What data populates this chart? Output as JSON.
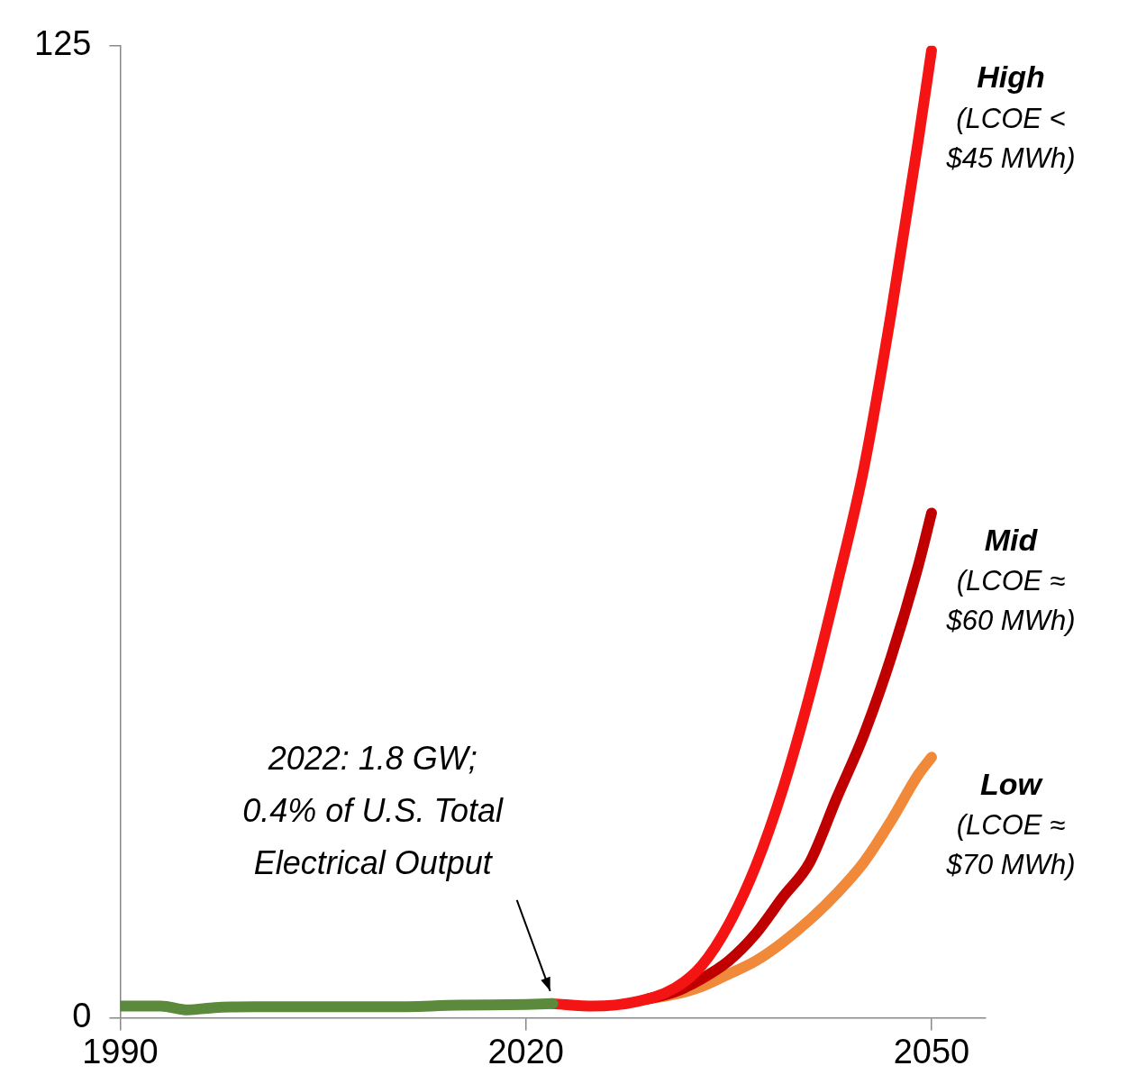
{
  "chart_data": {
    "type": "line",
    "xlim": [
      1990,
      2054
    ],
    "xticks": [
      1990,
      2020,
      2050
    ],
    "ylim": [
      0,
      125
    ],
    "yticks": [
      0,
      125
    ],
    "grid": false,
    "legend": false,
    "marker": "none",
    "line_style": "solid",
    "series": [
      {
        "color": "#5b8a3c",
        "x": [
          1990,
          1993,
          1995,
          1997,
          2000,
          2005,
          2010,
          2015,
          2020,
          2022
        ],
        "values": [
          1.5,
          1.5,
          1.0,
          1.3,
          1.4,
          1.4,
          1.4,
          1.6,
          1.7,
          1.8
        ]
      },
      {
        "name": "High",
        "color": "#f51414",
        "x": [
          2022,
          2025,
          2028,
          2031,
          2033,
          2035,
          2037,
          2039,
          2041,
          2043,
          2045,
          2047,
          2049,
          2050
        ],
        "values": [
          1.8,
          1.5,
          2,
          3.8,
          6.7,
          12,
          19.5,
          29.4,
          41.6,
          55.6,
          70.7,
          90.5,
          112.6,
          124.4
        ]
      },
      {
        "name": "Mid",
        "color": "#c00000",
        "x": [
          2029,
          2031,
          2033,
          2035,
          2037,
          2039,
          2041,
          2043,
          2045,
          2047,
          2049,
          2050
        ],
        "values": [
          2.4,
          3.3,
          5,
          7.3,
          10.8,
          15.5,
          20,
          28.3,
          36.4,
          46.3,
          58,
          64.9
        ]
      },
      {
        "name": "Low",
        "color": "#f0893a",
        "x": [
          2029,
          2031,
          2033,
          2035,
          2037,
          2039,
          2041,
          2043,
          2045,
          2047,
          2049,
          2050
        ],
        "values": [
          2.4,
          3,
          4,
          5.6,
          7.3,
          9.7,
          12.6,
          16,
          20,
          25.3,
          31.2,
          33.5
        ]
      }
    ],
    "annotations": [
      "(LCOE < $45 MWh)",
      "(LCOE ≈ $60 MWh)",
      "(LCOE ≈ $70 MWh)",
      "2022: 1.8 GW; 0.4% of U.S. Total Electrical Output"
    ]
  }
}
